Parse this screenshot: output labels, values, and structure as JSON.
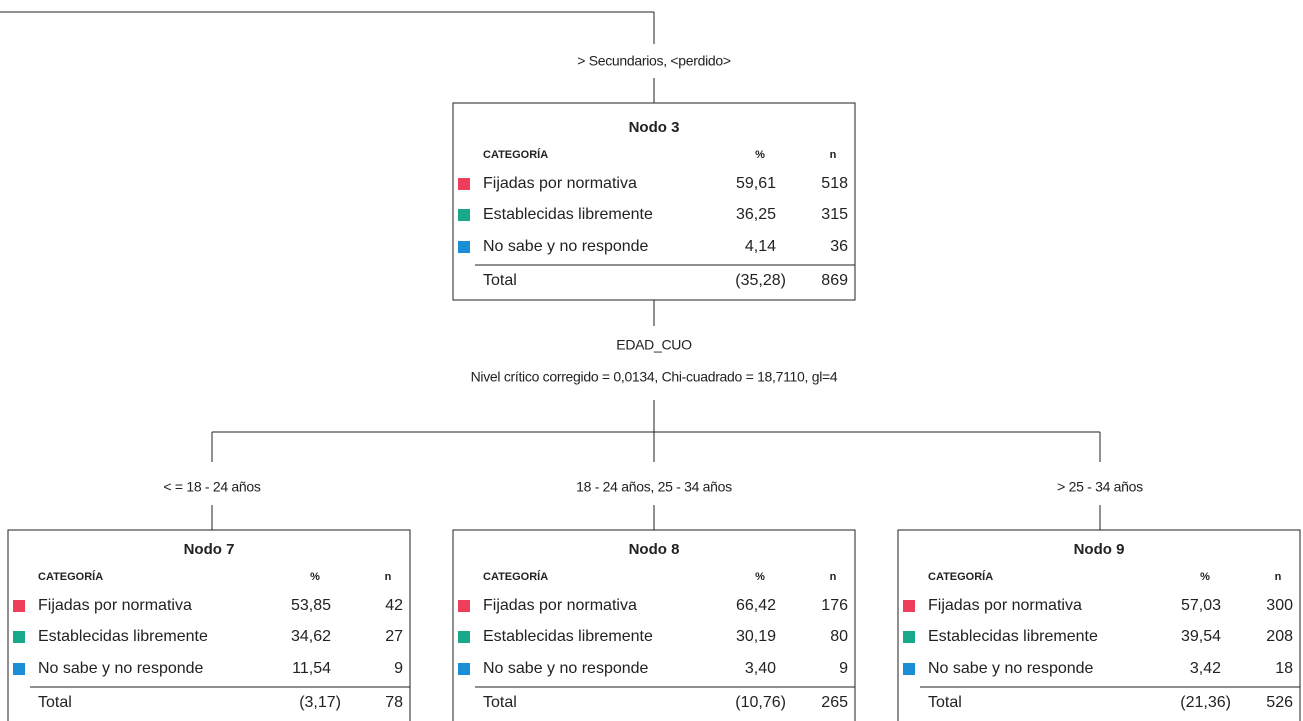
{
  "edges": {
    "root": "> Secundarios, <perdido>",
    "split": {
      "variable": "EDAD_CUO",
      "stats": "Nivel crítico corregido = 0,0134, Chi-cuadrado = 18,7110, gl=4"
    },
    "branches": [
      "< = 18 - 24 años",
      "18 - 24 años, 25 - 34 años",
      "> 25 - 34 años"
    ]
  },
  "nodes": [
    {
      "title": "Nodo 3",
      "header": [
        "CATEGORÍA",
        "%",
        "n"
      ],
      "rows": [
        [
          "Fijadas por normativa",
          "59,61",
          "518"
        ],
        [
          "Establecidas libremente",
          "36,25",
          "315"
        ],
        [
          "No sabe y no responde",
          "4,14",
          "36"
        ]
      ],
      "total": [
        "Total",
        "(35,28)",
        "869"
      ]
    },
    {
      "title": "Nodo 7",
      "header": [
        "CATEGORÍA",
        "%",
        "n"
      ],
      "rows": [
        [
          "Fijadas por normativa",
          "53,85",
          "42"
        ],
        [
          "Establecidas libremente",
          "34,62",
          "27"
        ],
        [
          "No sabe y no responde",
          "11,54",
          "9"
        ]
      ],
      "total": [
        "Total",
        "(3,17)",
        "78"
      ]
    },
    {
      "title": "Nodo 8",
      "header": [
        "CATEGORÍA",
        "%",
        "n"
      ],
      "rows": [
        [
          "Fijadas por normativa",
          "66,42",
          "176"
        ],
        [
          "Establecidas libremente",
          "30,19",
          "80"
        ],
        [
          "No sabe y no responde",
          "3,40",
          "9"
        ]
      ],
      "total": [
        "Total",
        "(10,76)",
        "265"
      ]
    },
    {
      "title": "Nodo 9",
      "header": [
        "CATEGORÍA",
        "%",
        "n"
      ],
      "rows": [
        [
          "Fijadas por normativa",
          "57,03",
          "300"
        ],
        [
          "Establecidas libremente",
          "39,54",
          "208"
        ],
        [
          "No sabe y no responde",
          "3,42",
          "18"
        ]
      ],
      "total": [
        "Total",
        "(21,36)",
        "526"
      ]
    }
  ]
}
